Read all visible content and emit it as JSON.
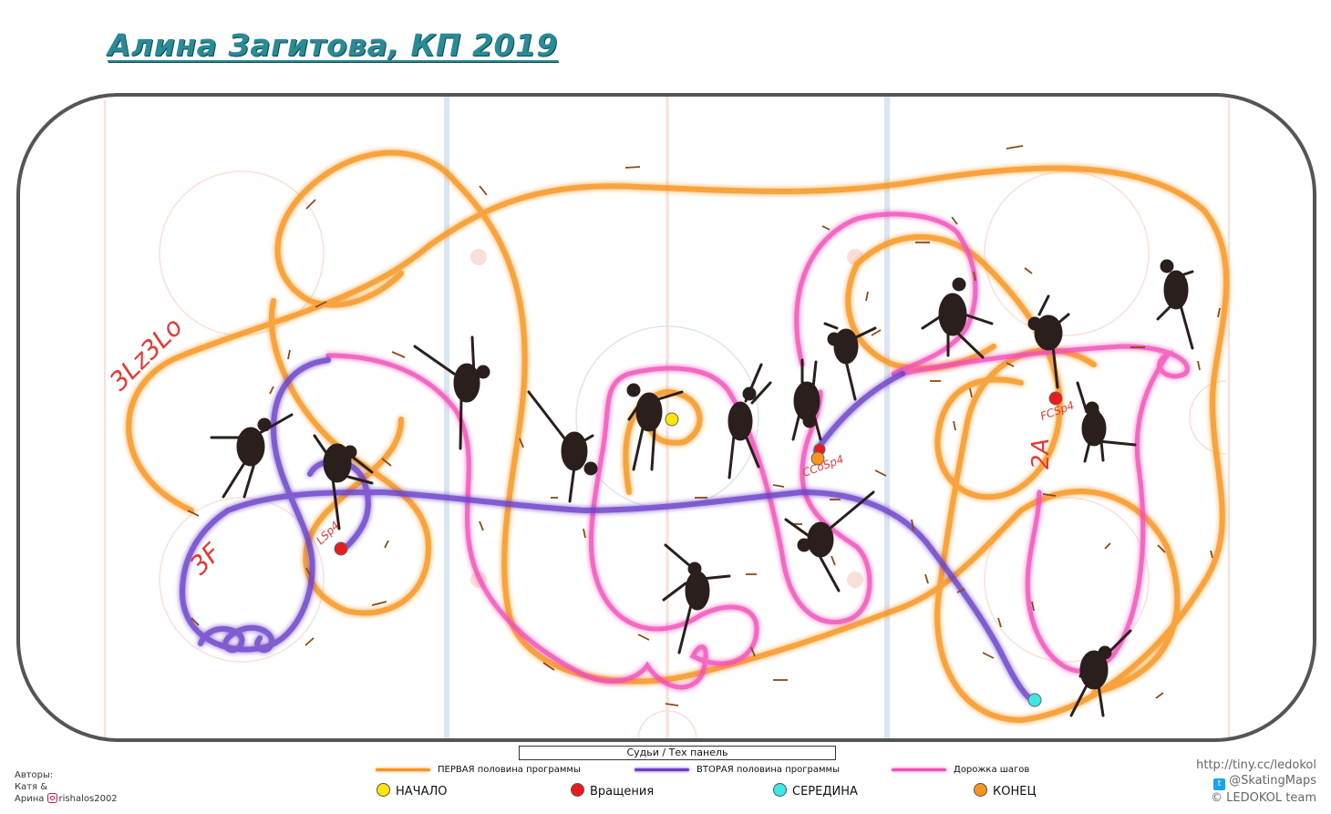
{
  "title": "Алина Загитова, КП 2019",
  "judges_panel": "Судьи / Тех панель",
  "elements": {
    "jump_combo": "3Lz3Lo",
    "jump_3f": "3F",
    "jump_2a": "2A",
    "spin_lsp": "LSp4",
    "spin_ccosp": "CCoSp4",
    "spin_fcsp": "FCSp4"
  },
  "legend": {
    "first_half": "ПЕРВАЯ половина программы",
    "second_half": "ВТОРАЯ половина программы",
    "step_sequence": "Дорожка шагов",
    "start": "НАЧАЛО",
    "spins": "Вращения",
    "middle": "СЕРЕДИНА",
    "end": "КОНЕЦ"
  },
  "colors": {
    "first_half": "#f7941d",
    "second_half": "#6a3fc9",
    "step_sequence": "#f24fb8",
    "start": "#ffe600",
    "spins": "#e81c1c",
    "middle": "#3ee6e6",
    "end": "#f7941d",
    "title": "#2a8a96"
  },
  "authors": {
    "label": "Авторы:",
    "line1": "Катя &",
    "line2": "Арина",
    "instagram": "rishalos2002"
  },
  "credits": {
    "url": "http://tiny.cc/ledokol",
    "twitter": "@SkatingMaps",
    "team": "© LEDOKOL team"
  }
}
